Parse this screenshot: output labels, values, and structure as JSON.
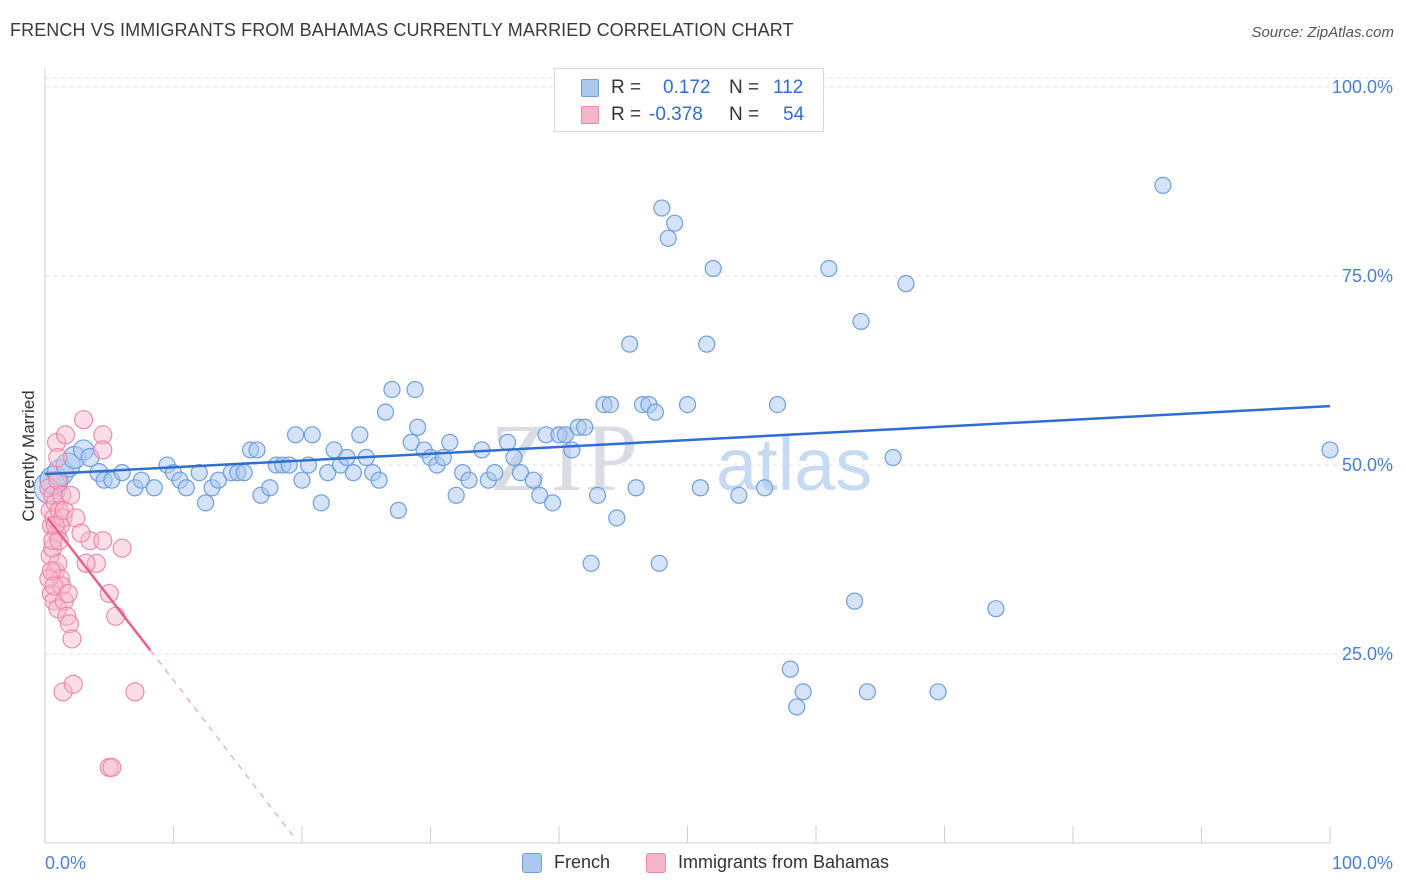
{
  "title": "FRENCH VS IMMIGRANTS FROM BAHAMAS CURRENTLY MARRIED CORRELATION CHART",
  "source": "Source: ZipAtlas.com",
  "watermark": {
    "zip": "ZIP",
    "atlas": "atlas"
  },
  "legend": {
    "rows": [
      {
        "r_label": "R =",
        "r_value": "0.172",
        "n_label": "N =",
        "n_value": "112"
      },
      {
        "r_label": "R =",
        "r_value": "-0.378",
        "n_label": "N =",
        "n_value": "54"
      }
    ]
  },
  "bottom_legend": {
    "french": "French",
    "bahamas": "Immigrants from Bahamas"
  },
  "colors": {
    "french_fill": "#aac8f0",
    "french_stroke": "#6f9fdc",
    "french_line": "#2e6fcf",
    "bahamas_fill": "#f6b6c9",
    "bahamas_stroke": "#ec86a6",
    "bahamas_line": "#e4628e",
    "axis_text": "#4a80d0"
  },
  "chart_data": {
    "type": "scatter",
    "title": "FRENCH VS IMMIGRANTS FROM BAHAMAS CURRENTLY MARRIED CORRELATION CHART",
    "xlabel": "",
    "ylabel": "Currently Married",
    "xlim": [
      0,
      100
    ],
    "ylim": [
      0,
      102
    ],
    "x_tick_labels": [
      "0.0%",
      "100.0%"
    ],
    "y_ticks": [
      25,
      50,
      75,
      100
    ],
    "y_tick_labels": [
      "25.0%",
      "50.0%",
      "75.0%",
      "100.0%"
    ],
    "grid": true,
    "legend_position": "top-center",
    "series": [
      {
        "name": "French",
        "r": 0.172,
        "n": 112,
        "trend": {
          "x": [
            0,
            100
          ],
          "y": [
            48.8,
            57.8
          ]
        },
        "points": [
          [
            0.4,
            47,
            16
          ],
          [
            0.7,
            48,
            14
          ],
          [
            1.2,
            49,
            13
          ],
          [
            1.8,
            50,
            12
          ],
          [
            2.3,
            51,
            11
          ],
          [
            3,
            52,
            10
          ],
          [
            3.5,
            51,
            9
          ],
          [
            4.2,
            49,
            9
          ],
          [
            4.6,
            48,
            8
          ],
          [
            5.2,
            48,
            8
          ],
          [
            6,
            49,
            8
          ],
          [
            7,
            47,
            8
          ],
          [
            7.5,
            48,
            8
          ],
          [
            8.5,
            47,
            8
          ],
          [
            9.5,
            50,
            8
          ],
          [
            10,
            49,
            8
          ],
          [
            10.5,
            48,
            8
          ],
          [
            11,
            47,
            8
          ],
          [
            12,
            49,
            8
          ],
          [
            12.5,
            45,
            8
          ],
          [
            13,
            47,
            8
          ],
          [
            13.5,
            48,
            8
          ],
          [
            14.5,
            49,
            8
          ],
          [
            15,
            49,
            8
          ],
          [
            15.5,
            49,
            8
          ],
          [
            16,
            52,
            8
          ],
          [
            16.5,
            52,
            8
          ],
          [
            16.8,
            46,
            8
          ],
          [
            17.5,
            47,
            8
          ],
          [
            18,
            50,
            8
          ],
          [
            18.5,
            50,
            8
          ],
          [
            19,
            50,
            8
          ],
          [
            19.5,
            54,
            8
          ],
          [
            20,
            48,
            8
          ],
          [
            20.5,
            50,
            8
          ],
          [
            20.8,
            54,
            8
          ],
          [
            21.5,
            45,
            8
          ],
          [
            22,
            49,
            8
          ],
          [
            22.5,
            52,
            8
          ],
          [
            23,
            50,
            8
          ],
          [
            23.5,
            51,
            8
          ],
          [
            24,
            49,
            8
          ],
          [
            24.5,
            54,
            8
          ],
          [
            25,
            51,
            8
          ],
          [
            25.5,
            49,
            8
          ],
          [
            26,
            48,
            8
          ],
          [
            26.5,
            57,
            8
          ],
          [
            27,
            60,
            8
          ],
          [
            27.5,
            44,
            8
          ],
          [
            28.5,
            53,
            8
          ],
          [
            28.8,
            60,
            8
          ],
          [
            29,
            55,
            8
          ],
          [
            29.5,
            52,
            8
          ],
          [
            30,
            51,
            8
          ],
          [
            30.5,
            50,
            8
          ],
          [
            31,
            51,
            8
          ],
          [
            31.5,
            53,
            8
          ],
          [
            32,
            46,
            8
          ],
          [
            32.5,
            49,
            8
          ],
          [
            33,
            48,
            8
          ],
          [
            34,
            52,
            8
          ],
          [
            34.5,
            48,
            8
          ],
          [
            35,
            49,
            8
          ],
          [
            36,
            53,
            8
          ],
          [
            36.5,
            51,
            8
          ],
          [
            37,
            49,
            8
          ],
          [
            38,
            48,
            8
          ],
          [
            38.5,
            46,
            8
          ],
          [
            39,
            54,
            8
          ],
          [
            39.5,
            45,
            8
          ],
          [
            40,
            54,
            8
          ],
          [
            40.5,
            54,
            8
          ],
          [
            41,
            52,
            8
          ],
          [
            41.5,
            55,
            8
          ],
          [
            42,
            55,
            8
          ],
          [
            42.5,
            37,
            8
          ],
          [
            43,
            46,
            8
          ],
          [
            43.5,
            58,
            8
          ],
          [
            44,
            58,
            8
          ],
          [
            44.5,
            43,
            8
          ],
          [
            45.5,
            66,
            8
          ],
          [
            46,
            47,
            8
          ],
          [
            46.5,
            58,
            8
          ],
          [
            47,
            58,
            8
          ],
          [
            47.5,
            57,
            8
          ],
          [
            47.8,
            37,
            8
          ],
          [
            48,
            84,
            8
          ],
          [
            48.5,
            80,
            8
          ],
          [
            49,
            82,
            8
          ],
          [
            50,
            58,
            8
          ],
          [
            51,
            47,
            8
          ],
          [
            51.5,
            66,
            8
          ],
          [
            52,
            76,
            8
          ],
          [
            54,
            46,
            8
          ],
          [
            56,
            47,
            8
          ],
          [
            57,
            58,
            8
          ],
          [
            58,
            23,
            8
          ],
          [
            58.5,
            18,
            8
          ],
          [
            59,
            20,
            8
          ],
          [
            61,
            76,
            8
          ],
          [
            63,
            32,
            8
          ],
          [
            63.5,
            69,
            8
          ],
          [
            64,
            20,
            8
          ],
          [
            66,
            51,
            8
          ],
          [
            67,
            74,
            8
          ],
          [
            69.5,
            20,
            8
          ],
          [
            74,
            31,
            8
          ],
          [
            87,
            87,
            8
          ],
          [
            100,
            52,
            8
          ]
        ]
      },
      {
        "name": "Immigrants from Bahamas",
        "r": -0.378,
        "n": 54,
        "trend": {
          "x": [
            0.2,
            8.2
          ],
          "y": [
            43,
            25.5
          ]
        },
        "trend_dashed": {
          "x": [
            8.2,
            19.5
          ],
          "y": [
            25.5,
            0.5
          ]
        },
        "points": [
          [
            0.3,
            47,
            9
          ],
          [
            0.4,
            44,
            9
          ],
          [
            0.5,
            42,
            9
          ],
          [
            0.6,
            46,
            9
          ],
          [
            0.7,
            43,
            9
          ],
          [
            0.8,
            45,
            9
          ],
          [
            0.9,
            41,
            9
          ],
          [
            1.0,
            48,
            9
          ],
          [
            1.1,
            44,
            9
          ],
          [
            1.2,
            42,
            9
          ],
          [
            1.3,
            46,
            9
          ],
          [
            1.4,
            43,
            9
          ],
          [
            0.4,
            38,
            9
          ],
          [
            0.6,
            39,
            9
          ],
          [
            0.8,
            36,
            9
          ],
          [
            1.0,
            37,
            9
          ],
          [
            1.2,
            35,
            9
          ],
          [
            0.5,
            33,
            9
          ],
          [
            0.7,
            32,
            9
          ],
          [
            1.0,
            31,
            9
          ],
          [
            1.3,
            34,
            9
          ],
          [
            1.5,
            32,
            9
          ],
          [
            1.7,
            30,
            9
          ],
          [
            1.9,
            29,
            9
          ],
          [
            2.1,
            27,
            9
          ],
          [
            0.9,
            53,
            9
          ],
          [
            1.6,
            54,
            9
          ],
          [
            3.0,
            56,
            9
          ],
          [
            4.5,
            54,
            9
          ],
          [
            4.5,
            52,
            9
          ],
          [
            3.5,
            40,
            9
          ],
          [
            4.0,
            37,
            9
          ],
          [
            4.5,
            40,
            9
          ],
          [
            5.0,
            33,
            9
          ],
          [
            5.5,
            30,
            9
          ],
          [
            6.0,
            39,
            9
          ],
          [
            1.4,
            20,
            9
          ],
          [
            2.2,
            21,
            9
          ],
          [
            7.0,
            20,
            9
          ],
          [
            5.0,
            10,
            9
          ],
          [
            5.2,
            10,
            9
          ],
          [
            0.6,
            40,
            9
          ],
          [
            0.8,
            42,
            9
          ],
          [
            1.1,
            40,
            9
          ],
          [
            1.5,
            44,
            9
          ],
          [
            2.0,
            46,
            9
          ],
          [
            2.4,
            43,
            9
          ],
          [
            2.8,
            41,
            9
          ],
          [
            0.3,
            35,
            9
          ],
          [
            0.5,
            36,
            9
          ],
          [
            0.7,
            34,
            9
          ],
          [
            1.8,
            33,
            9
          ],
          [
            3.2,
            37,
            9
          ],
          [
            1.0,
            51,
            9
          ]
        ]
      }
    ]
  }
}
